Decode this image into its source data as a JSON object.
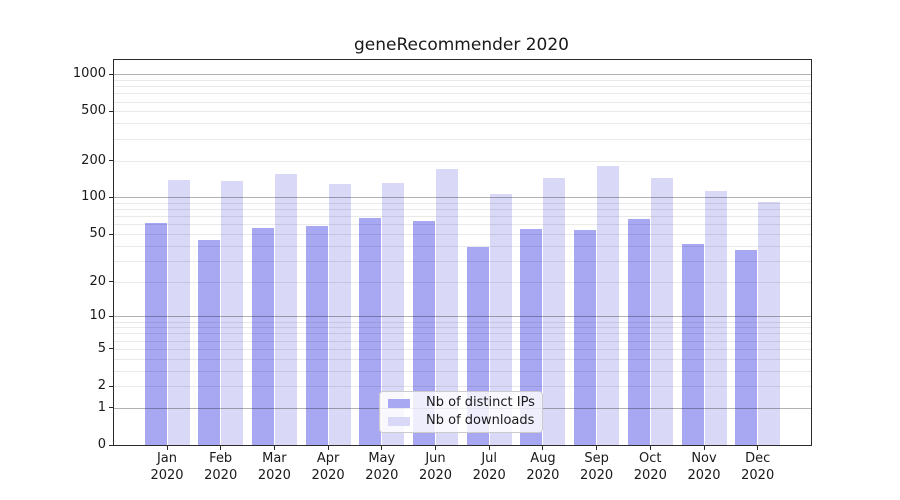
{
  "title": "geneRecommender 2020",
  "legend": {
    "items": [
      {
        "label": "Nb of distinct IPs",
        "color": "#a8a8f2"
      },
      {
        "label": "Nb of downloads",
        "color": "#d9d9f7"
      }
    ]
  },
  "axis": {
    "y_ticks": [
      {
        "label": "0",
        "value": 0
      },
      {
        "label": "1",
        "value": 1
      },
      {
        "label": "2",
        "value": 2
      },
      {
        "label": "5",
        "value": 5
      },
      {
        "label": "10",
        "value": 10
      },
      {
        "label": "20",
        "value": 20
      },
      {
        "label": "50",
        "value": 50
      },
      {
        "label": "100",
        "value": 100
      },
      {
        "label": "200",
        "value": 200
      },
      {
        "label": "500",
        "value": 500
      },
      {
        "label": "1000",
        "value": 1000
      }
    ],
    "x_months": [
      "Jan",
      "Feb",
      "Mar",
      "Apr",
      "May",
      "Jun",
      "Jul",
      "Aug",
      "Sep",
      "Oct",
      "Nov",
      "Dec"
    ],
    "x_year": "2020"
  },
  "chart_data": {
    "type": "bar",
    "title": "geneRecommender 2020",
    "categories": [
      "Jan 2020",
      "Feb 2020",
      "Mar 2020",
      "Apr 2020",
      "May 2020",
      "Jun 2020",
      "Jul 2020",
      "Aug 2020",
      "Sep 2020",
      "Oct 2020",
      "Nov 2020",
      "Dec 2020"
    ],
    "series": [
      {
        "name": "Nb of distinct IPs",
        "color": "#a8a8f2",
        "values": [
          62,
          45,
          56,
          58,
          68,
          64,
          39,
          55,
          54,
          67,
          41,
          37
        ]
      },
      {
        "name": "Nb of downloads",
        "color": "#d9d9f7",
        "values": [
          138,
          136,
          155,
          128,
          132,
          172,
          106,
          143,
          182,
          145,
          112,
          91
        ]
      }
    ],
    "yscale": "log1p",
    "ylim": [
      0,
      1306
    ],
    "yticks": [
      0,
      1,
      2,
      5,
      10,
      20,
      50,
      100,
      200,
      500,
      1000
    ],
    "grid": {
      "major": [
        1,
        10,
        100,
        1000
      ],
      "minor": [
        2,
        3,
        4,
        5,
        6,
        7,
        8,
        9,
        20,
        30,
        40,
        50,
        60,
        70,
        80,
        90,
        200,
        300,
        400,
        500,
        600,
        700,
        800,
        900
      ]
    },
    "grid_on": true,
    "legend_position": "lower center inside",
    "xlabel": "",
    "ylabel": ""
  }
}
